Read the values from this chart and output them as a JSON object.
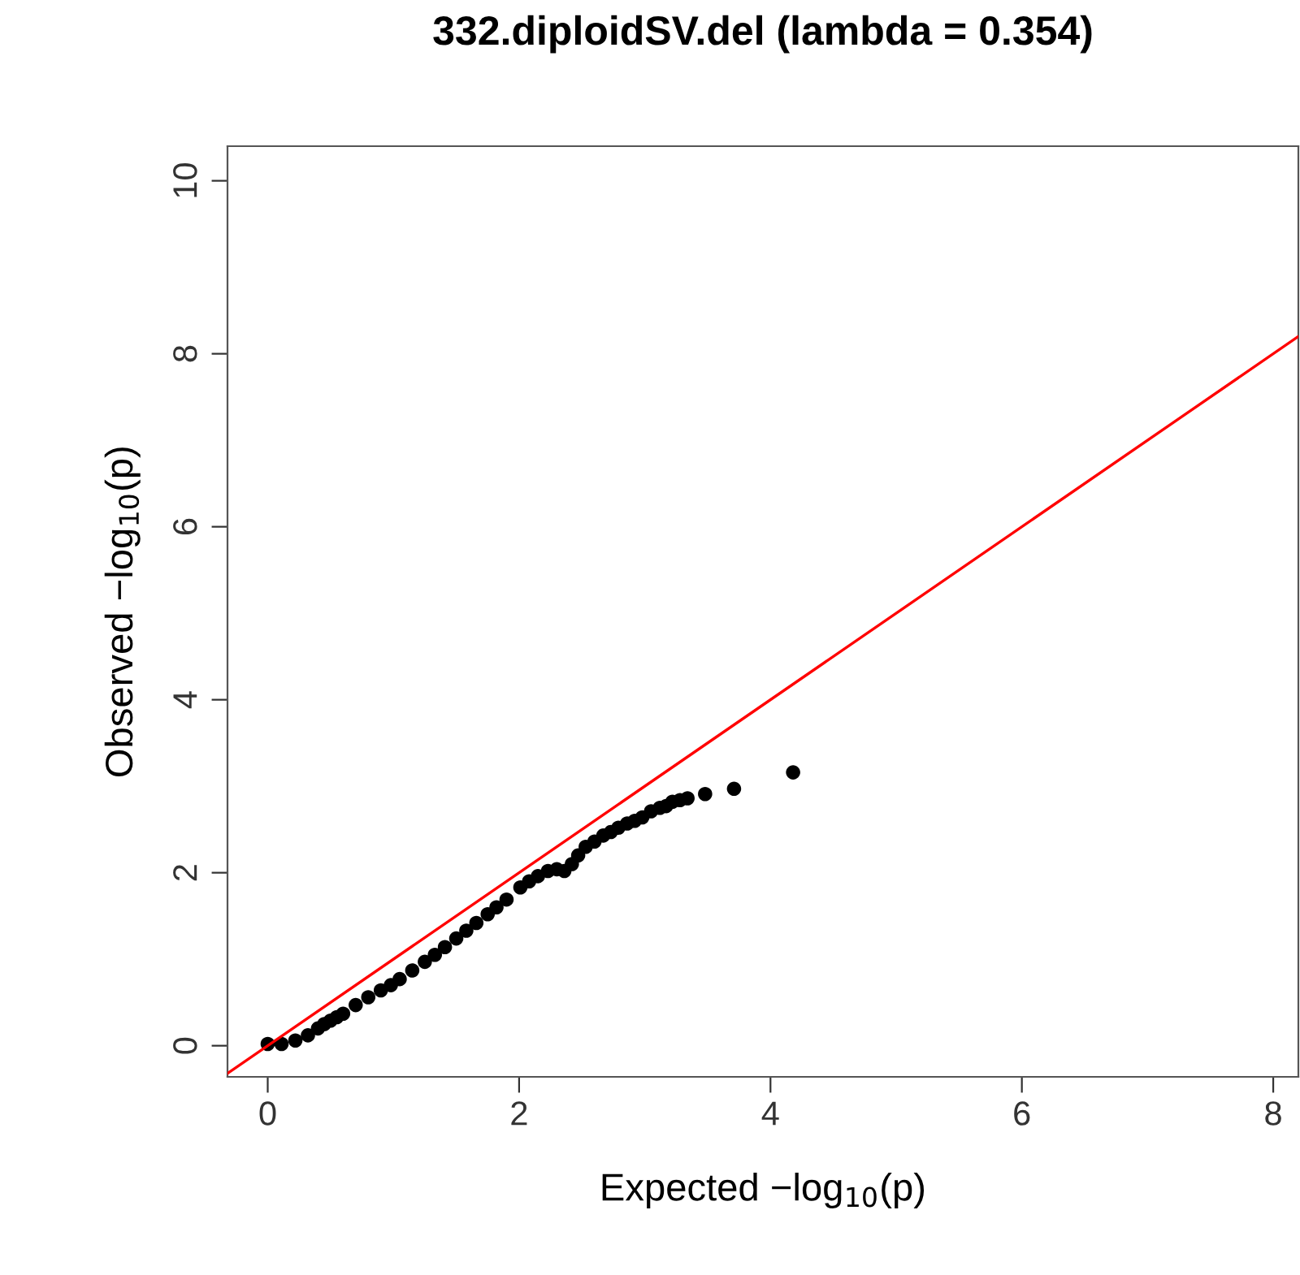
{
  "chart_data": {
    "type": "scatter",
    "title": "332.diploidSV.del (lambda = 0.354)",
    "xlabel": "Expected −log$_{10}$(p)",
    "ylabel": "Observed −log$_{10}$(p)",
    "xlim": [
      -0.32,
      8.2
    ],
    "ylim": [
      -0.36,
      10.4
    ],
    "xticks": [
      0,
      2,
      4,
      6,
      8
    ],
    "yticks": [
      0,
      2,
      4,
      6,
      8,
      10
    ],
    "grid": false,
    "legend": false,
    "marker": "circle",
    "series": [
      {
        "color": "#000000",
        "x": [
          0,
          0.11,
          0.22,
          0.32,
          0.4,
          0.45,
          0.5,
          0.55,
          0.6,
          0.7,
          0.8,
          0.9,
          0.98,
          1.05,
          1.15,
          1.25,
          1.33,
          1.41,
          1.5,
          1.58,
          1.66,
          1.75,
          1.82,
          1.9,
          2.01,
          2.08,
          2.15,
          2.23,
          2.3,
          2.36,
          2.42,
          2.47,
          2.53,
          2.6,
          2.67,
          2.73,
          2.79,
          2.86,
          2.92,
          2.98,
          3.05,
          3.12,
          3.17,
          3.22,
          3.28,
          3.34,
          3.48,
          3.71,
          4.18
        ],
        "values": [
          0.02,
          0.02,
          0.06,
          0.12,
          0.2,
          0.25,
          0.29,
          0.33,
          0.37,
          0.47,
          0.56,
          0.64,
          0.7,
          0.77,
          0.87,
          0.97,
          1.05,
          1.14,
          1.24,
          1.33,
          1.42,
          1.52,
          1.6,
          1.69,
          1.83,
          1.9,
          1.96,
          2.02,
          2.04,
          2.02,
          2.1,
          2.2,
          2.3,
          2.36,
          2.43,
          2.47,
          2.52,
          2.57,
          2.6,
          2.64,
          2.71,
          2.75,
          2.77,
          2.82,
          2.84,
          2.86,
          2.91,
          2.97,
          3.16
        ]
      },
      {
        "type": "line",
        "marker": "none",
        "color": "#ff0000",
        "x": [
          -0.32,
          8.2
        ],
        "values": [
          -0.32,
          8.2
        ]
      }
    ]
  }
}
